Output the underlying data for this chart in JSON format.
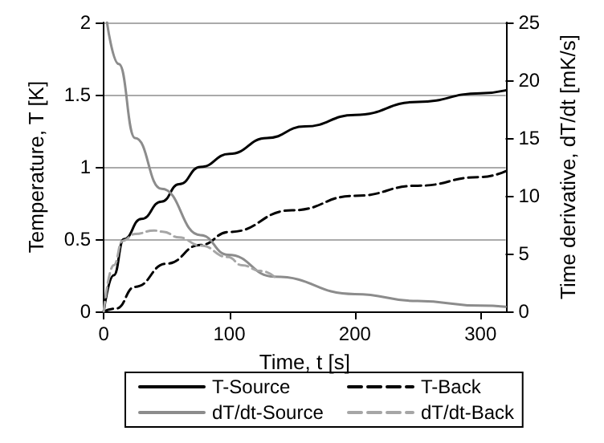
{
  "chart_data": {
    "type": "line",
    "xlabel": "Time, t [s]",
    "ylabel": "Temperature, T [K]",
    "y2label": "Time derivative, dT/dt [mK/s]",
    "xlim": [
      0,
      320
    ],
    "xticks": [
      0,
      100,
      200,
      300
    ],
    "ylim": [
      0,
      2
    ],
    "yticks": [
      0,
      0.5,
      1,
      1.5,
      2
    ],
    "y2lim": [
      0,
      25
    ],
    "y2ticks": [
      0,
      5,
      10,
      15,
      20,
      25
    ],
    "grid": "y",
    "legend": "bottom",
    "marker": "none",
    "series": [
      {
        "name": "T-Source",
        "color": "#000000",
        "line_style": "solid",
        "x": [
          0,
          8,
          16,
          30,
          46,
          60,
          77,
          100,
          130,
          160,
          200,
          250,
          300,
          320
        ],
        "values": [
          0,
          0.25,
          0.5,
          0.64,
          0.76,
          0.88,
          1.0,
          1.09,
          1.2,
          1.28,
          1.36,
          1.45,
          1.51,
          1.53
        ]
      },
      {
        "name": "T-Back",
        "color": "#000000",
        "line_style": "dashed",
        "x": [
          0,
          10,
          25,
          50,
          77,
          100,
          150,
          200,
          250,
          300,
          320
        ],
        "values": [
          0,
          0.02,
          0.17,
          0.33,
          0.46,
          0.55,
          0.7,
          0.8,
          0.87,
          0.93,
          0.97
        ]
      },
      {
        "name": "dT/dt-Source",
        "color": "#8c8c8c",
        "line_style": "solid",
        "axis": "y2",
        "x": [
          2.6,
          12,
          25,
          46,
          77,
          99,
          136,
          200,
          250,
          300,
          320
        ],
        "values": [
          25,
          21.4,
          15,
          10.6,
          6.6,
          4.9,
          3.0,
          1.5,
          0.9,
          0.5,
          0.4
        ]
      },
      {
        "name": "dT/dt-Back",
        "color": "#a6a6a6",
        "line_style": "dashed",
        "axis": "y2",
        "x": [
          0,
          8,
          15,
          25,
          40,
          47,
          60,
          77,
          99,
          110,
          125,
          136
        ],
        "values": [
          0,
          4,
          6.1,
          6.7,
          7.0,
          6.9,
          6.4,
          5.7,
          4.7,
          4.0,
          3.5,
          3.0
        ]
      }
    ]
  }
}
